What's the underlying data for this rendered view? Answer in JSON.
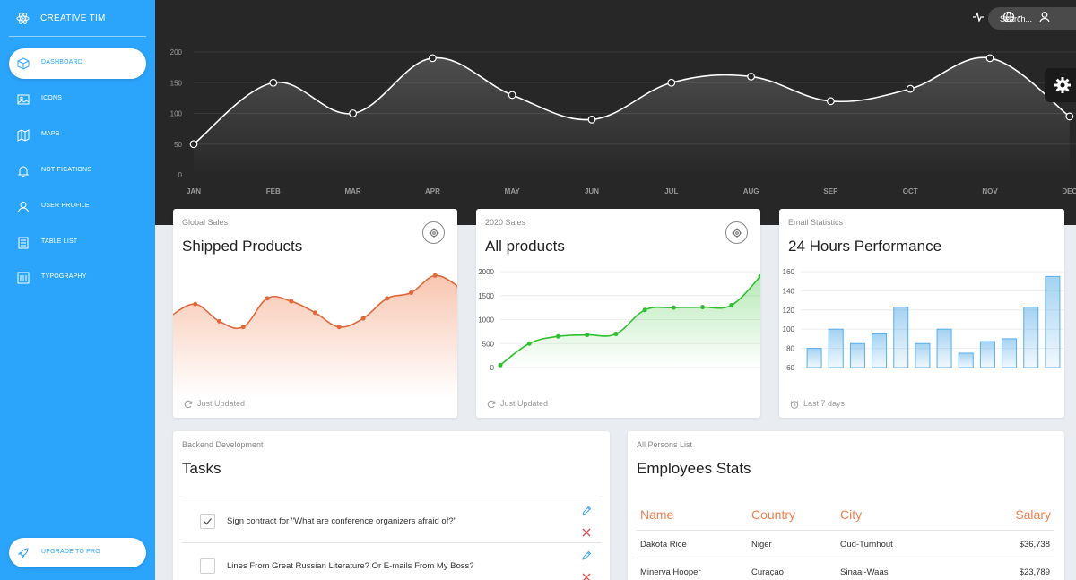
{
  "brand": {
    "name": "CREATIVE TIM",
    "icon": "atom-icon"
  },
  "sidebar": {
    "items": [
      {
        "label": "DASHBOARD",
        "icon": "cube-icon",
        "active": true
      },
      {
        "label": "ICONS",
        "icon": "image-icon"
      },
      {
        "label": "MAPS",
        "icon": "map-icon"
      },
      {
        "label": "NOTIFICATIONS",
        "icon": "bell-icon"
      },
      {
        "label": "USER PROFILE",
        "icon": "user-icon"
      },
      {
        "label": "TABLE LIST",
        "icon": "list-icon"
      },
      {
        "label": "TYPOGRAPHY",
        "icon": "text-icon"
      }
    ],
    "upgrade_label": "UPGRADE TO PRO"
  },
  "topbar": {
    "search_placeholder": "Search..."
  },
  "colors": {
    "sidebar": "#2ba4fc",
    "orange": "#f08050",
    "green": "#2ec02e",
    "blue": "#5aaee8",
    "dark": "#272727"
  },
  "chart_data": [
    {
      "type": "line",
      "categories": [
        "JAN",
        "FEB",
        "MAR",
        "APR",
        "MAY",
        "JUN",
        "JUL",
        "AUG",
        "SEP",
        "OCT",
        "NOV",
        "DEC"
      ],
      "values": [
        50,
        150,
        100,
        190,
        130,
        90,
        150,
        160,
        120,
        140,
        190,
        95
      ],
      "yticks": [
        0,
        50,
        100,
        150,
        200
      ],
      "ylim": [
        0,
        200
      ]
    },
    {
      "type": "area",
      "category_label": "Global Sales",
      "title": "Shipped Products",
      "values": [
        80,
        100,
        70,
        60,
        110,
        105,
        85,
        60,
        75,
        110,
        120,
        150,
        130
      ],
      "footer": "Just Updated"
    },
    {
      "type": "line",
      "category_label": "2020 Sales",
      "title": "All products",
      "values": [
        50,
        500,
        650,
        680,
        700,
        1200,
        1250,
        1260,
        1300,
        1900
      ],
      "yticks": [
        0,
        500,
        1000,
        1500,
        2000
      ],
      "ylim": [
        0,
        2000
      ],
      "footer": "Just Updated"
    },
    {
      "type": "bar",
      "category_label": "Email Statistics",
      "title": "24 Hours Performance",
      "values": [
        80,
        100,
        85,
        95,
        123,
        85,
        100,
        75,
        87,
        90,
        123,
        155
      ],
      "yticks": [
        60,
        80,
        100,
        120,
        140,
        160
      ],
      "ylim": [
        60,
        160
      ],
      "footer": "Last 7 days"
    }
  ],
  "tasks": {
    "category": "Backend Development",
    "title": "Tasks",
    "items": [
      {
        "text": "Sign contract for \"What are conference organizers afraid of?\"",
        "checked": true
      },
      {
        "text": "Lines From Great Russian Literature? Or E-mails From My Boss?",
        "checked": false
      }
    ]
  },
  "employees": {
    "category": "All Persons List",
    "title": "Employees Stats",
    "headers": [
      "Name",
      "Country",
      "City",
      "Salary"
    ],
    "rows": [
      [
        "Dakota Rice",
        "Niger",
        "Oud-Turnhout",
        "$36,738"
      ],
      [
        "Minerva Hooper",
        "Curaçao",
        "Sinaai-Waas",
        "$23,789"
      ]
    ]
  }
}
